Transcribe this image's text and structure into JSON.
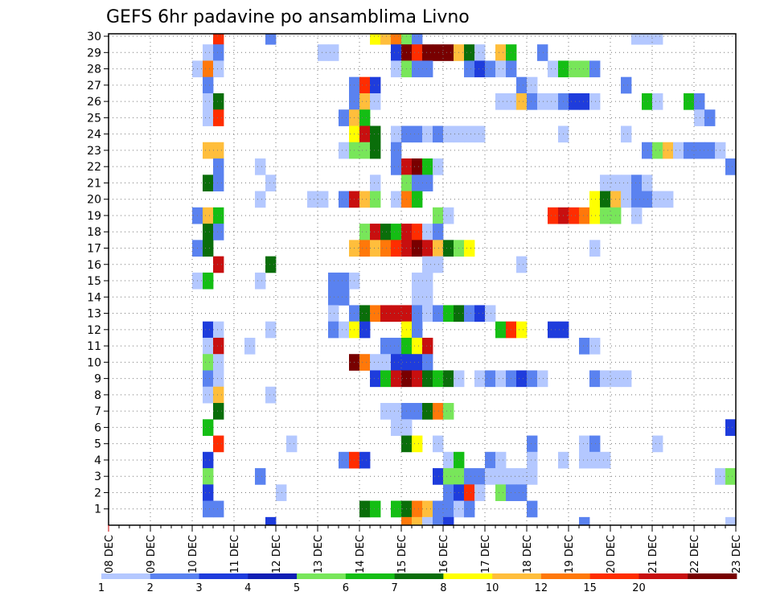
{
  "chart_data": {
    "type": "heatmap",
    "title": "GEFS 6hr padavine po ansamblima Livno",
    "xlabel": "",
    "ylabel": "",
    "x_ticks": [
      "08 DEC",
      "09 DEC",
      "10 DEC",
      "11 DEC",
      "12 DEC",
      "13 DEC",
      "14 DEC",
      "15 DEC",
      "16 DEC",
      "17 DEC",
      "18 DEC",
      "19 DEC",
      "20 DEC",
      "21 DEC",
      "22 DEC",
      "23 DEC"
    ],
    "y_ticks": [
      "1",
      "2",
      "3",
      "4",
      "5",
      "6",
      "7",
      "8",
      "9",
      "10",
      "11",
      "12",
      "13",
      "14",
      "15",
      "16",
      "17",
      "18",
      "19",
      "20",
      "21",
      "22",
      "23",
      "24",
      "25",
      "26",
      "27",
      "28",
      "29",
      "30"
    ],
    "x_range": [
      0,
      60
    ],
    "y_range": [
      0,
      30
    ],
    "grid": true,
    "colorbar": {
      "placement": "bottom",
      "colors": [
        "#b4c8ff",
        "#5a82f0",
        "#1e3cdc",
        "#0f1eb4",
        "#78e65a",
        "#14be14",
        "#0a6e0a",
        "#ffff00",
        "#ffbe3c",
        "#ff780a",
        "#ff2d00",
        "#c80f0f",
        "#780000"
      ],
      "labels": [
        "1",
        "2",
        "3",
        "4",
        "5",
        "6",
        "7",
        "8",
        "10",
        "12",
        "15",
        "20"
      ]
    },
    "cells": [
      [
        10,
        30,
        10
      ],
      [
        15,
        30,
        1
      ],
      [
        25,
        30,
        7
      ],
      [
        26,
        30,
        8
      ],
      [
        27,
        30,
        9
      ],
      [
        28,
        30,
        4
      ],
      [
        29,
        30,
        1
      ],
      [
        50,
        30,
        0
      ],
      [
        51,
        30,
        0
      ],
      [
        52,
        30,
        0
      ],
      [
        9,
        29,
        0
      ],
      [
        10,
        29,
        1
      ],
      [
        20,
        29,
        0
      ],
      [
        21,
        29,
        0
      ],
      [
        27,
        29,
        2
      ],
      [
        28,
        29,
        12
      ],
      [
        29,
        29,
        10
      ],
      [
        30,
        29,
        12
      ],
      [
        31,
        29,
        12
      ],
      [
        32,
        29,
        12
      ],
      [
        33,
        29,
        8
      ],
      [
        34,
        29,
        6
      ],
      [
        35,
        29,
        0
      ],
      [
        37,
        29,
        8
      ],
      [
        38,
        29,
        5
      ],
      [
        41,
        29,
        1
      ],
      [
        8,
        28,
        0
      ],
      [
        9,
        28,
        9
      ],
      [
        10,
        28,
        0
      ],
      [
        27,
        28,
        0
      ],
      [
        28,
        28,
        4
      ],
      [
        29,
        28,
        1
      ],
      [
        30,
        28,
        1
      ],
      [
        34,
        28,
        1
      ],
      [
        35,
        28,
        2
      ],
      [
        36,
        28,
        1
      ],
      [
        37,
        28,
        0
      ],
      [
        38,
        28,
        1
      ],
      [
        42,
        28,
        0
      ],
      [
        43,
        28,
        5
      ],
      [
        44,
        28,
        4
      ],
      [
        45,
        28,
        4
      ],
      [
        46,
        28,
        1
      ],
      [
        9,
        27,
        1
      ],
      [
        23,
        27,
        1
      ],
      [
        24,
        27,
        10
      ],
      [
        25,
        27,
        2
      ],
      [
        39,
        27,
        1
      ],
      [
        40,
        27,
        0
      ],
      [
        49,
        27,
        1
      ],
      [
        9,
        26,
        0
      ],
      [
        10,
        26,
        6
      ],
      [
        23,
        26,
        1
      ],
      [
        24,
        26,
        8
      ],
      [
        25,
        26,
        0
      ],
      [
        37,
        26,
        0
      ],
      [
        38,
        26,
        0
      ],
      [
        39,
        26,
        8
      ],
      [
        40,
        26,
        1
      ],
      [
        41,
        26,
        0
      ],
      [
        42,
        26,
        0
      ],
      [
        43,
        26,
        1
      ],
      [
        44,
        26,
        2
      ],
      [
        45,
        26,
        2
      ],
      [
        46,
        26,
        0
      ],
      [
        51,
        26,
        5
      ],
      [
        52,
        26,
        0
      ],
      [
        55,
        26,
        5
      ],
      [
        56,
        26,
        1
      ],
      [
        9,
        25,
        0
      ],
      [
        10,
        25,
        10
      ],
      [
        22,
        25,
        1
      ],
      [
        23,
        25,
        8
      ],
      [
        24,
        25,
        5
      ],
      [
        56,
        25,
        0
      ],
      [
        57,
        25,
        1
      ],
      [
        23,
        24,
        7
      ],
      [
        24,
        24,
        11
      ],
      [
        25,
        24,
        6
      ],
      [
        27,
        24,
        0
      ],
      [
        28,
        24,
        1
      ],
      [
        29,
        24,
        1
      ],
      [
        30,
        24,
        0
      ],
      [
        31,
        24,
        1
      ],
      [
        32,
        24,
        0
      ],
      [
        33,
        24,
        0
      ],
      [
        34,
        24,
        0
      ],
      [
        35,
        24,
        0
      ],
      [
        43,
        24,
        0
      ],
      [
        49,
        24,
        0
      ],
      [
        9,
        23,
        8
      ],
      [
        10,
        23,
        8
      ],
      [
        22,
        23,
        0
      ],
      [
        23,
        23,
        4
      ],
      [
        24,
        23,
        4
      ],
      [
        25,
        23,
        6
      ],
      [
        27,
        23,
        1
      ],
      [
        51,
        23,
        1
      ],
      [
        52,
        23,
        4
      ],
      [
        53,
        23,
        8
      ],
      [
        54,
        23,
        0
      ],
      [
        55,
        23,
        1
      ],
      [
        56,
        23,
        1
      ],
      [
        57,
        23,
        1
      ],
      [
        58,
        23,
        0
      ],
      [
        10,
        22,
        1
      ],
      [
        14,
        22,
        0
      ],
      [
        27,
        22,
        1
      ],
      [
        28,
        22,
        11
      ],
      [
        29,
        22,
        12
      ],
      [
        30,
        22,
        5
      ],
      [
        31,
        22,
        0
      ],
      [
        59,
        22,
        1
      ],
      [
        9,
        21,
        6
      ],
      [
        10,
        21,
        1
      ],
      [
        15,
        21,
        0
      ],
      [
        25,
        21,
        0
      ],
      [
        28,
        21,
        4
      ],
      [
        29,
        21,
        1
      ],
      [
        30,
        21,
        1
      ],
      [
        47,
        21,
        0
      ],
      [
        48,
        21,
        0
      ],
      [
        49,
        21,
        0
      ],
      [
        50,
        21,
        1
      ],
      [
        51,
        21,
        0
      ],
      [
        14,
        20,
        0
      ],
      [
        19,
        20,
        0
      ],
      [
        20,
        20,
        0
      ],
      [
        22,
        20,
        1
      ],
      [
        23,
        20,
        11
      ],
      [
        24,
        20,
        8
      ],
      [
        25,
        20,
        4
      ],
      [
        27,
        20,
        0
      ],
      [
        28,
        20,
        9
      ],
      [
        29,
        20,
        5
      ],
      [
        46,
        20,
        7
      ],
      [
        47,
        20,
        6
      ],
      [
        48,
        20,
        8
      ],
      [
        49,
        20,
        0
      ],
      [
        50,
        20,
        1
      ],
      [
        51,
        20,
        1
      ],
      [
        52,
        20,
        0
      ],
      [
        53,
        20,
        0
      ],
      [
        8,
        19,
        1
      ],
      [
        9,
        19,
        8
      ],
      [
        10,
        19,
        5
      ],
      [
        31,
        19,
        4
      ],
      [
        32,
        19,
        0
      ],
      [
        42,
        19,
        10
      ],
      [
        43,
        19,
        11
      ],
      [
        44,
        19,
        10
      ],
      [
        45,
        19,
        9
      ],
      [
        46,
        19,
        7
      ],
      [
        47,
        19,
        4
      ],
      [
        48,
        19,
        4
      ],
      [
        50,
        19,
        0
      ],
      [
        9,
        18,
        6
      ],
      [
        10,
        18,
        1
      ],
      [
        24,
        18,
        4
      ],
      [
        25,
        18,
        11
      ],
      [
        26,
        18,
        6
      ],
      [
        27,
        18,
        5
      ],
      [
        28,
        18,
        11
      ],
      [
        29,
        18,
        10
      ],
      [
        30,
        18,
        0
      ],
      [
        31,
        18,
        1
      ],
      [
        8,
        17,
        1
      ],
      [
        9,
        17,
        6
      ],
      [
        23,
        17,
        8
      ],
      [
        24,
        17,
        9
      ],
      [
        25,
        17,
        8
      ],
      [
        26,
        17,
        9
      ],
      [
        27,
        17,
        10
      ],
      [
        28,
        17,
        11
      ],
      [
        29,
        17,
        12
      ],
      [
        30,
        17,
        11
      ],
      [
        31,
        17,
        8
      ],
      [
        32,
        17,
        6
      ],
      [
        33,
        17,
        4
      ],
      [
        34,
        17,
        7
      ],
      [
        46,
        17,
        0
      ],
      [
        10,
        16,
        11
      ],
      [
        15,
        16,
        6
      ],
      [
        30,
        16,
        0
      ],
      [
        31,
        16,
        0
      ],
      [
        39,
        16,
        0
      ],
      [
        8,
        15,
        0
      ],
      [
        9,
        15,
        5
      ],
      [
        14,
        15,
        0
      ],
      [
        21,
        15,
        1
      ],
      [
        22,
        15,
        1
      ],
      [
        23,
        15,
        0
      ],
      [
        29,
        15,
        0
      ],
      [
        30,
        15,
        0
      ],
      [
        21,
        14,
        1
      ],
      [
        22,
        14,
        1
      ],
      [
        29,
        14,
        0
      ],
      [
        30,
        14,
        0
      ],
      [
        21,
        13,
        0
      ],
      [
        23,
        13,
        1
      ],
      [
        24,
        13,
        6
      ],
      [
        25,
        13,
        9
      ],
      [
        26,
        13,
        11
      ],
      [
        27,
        13,
        11
      ],
      [
        28,
        13,
        11
      ],
      [
        29,
        13,
        1
      ],
      [
        30,
        13,
        0
      ],
      [
        31,
        13,
        1
      ],
      [
        32,
        13,
        5
      ],
      [
        33,
        13,
        6
      ],
      [
        34,
        13,
        1
      ],
      [
        35,
        13,
        2
      ],
      [
        36,
        13,
        0
      ],
      [
        9,
        12,
        2
      ],
      [
        10,
        12,
        0
      ],
      [
        15,
        12,
        0
      ],
      [
        21,
        12,
        1
      ],
      [
        22,
        12,
        0
      ],
      [
        23,
        12,
        7
      ],
      [
        24,
        12,
        2
      ],
      [
        28,
        12,
        7
      ],
      [
        29,
        12,
        1
      ],
      [
        37,
        12,
        5
      ],
      [
        38,
        12,
        10
      ],
      [
        39,
        12,
        7
      ],
      [
        42,
        12,
        2
      ],
      [
        43,
        12,
        2
      ],
      [
        9,
        11,
        0
      ],
      [
        10,
        11,
        11
      ],
      [
        13,
        11,
        0
      ],
      [
        26,
        11,
        1
      ],
      [
        27,
        11,
        1
      ],
      [
        28,
        11,
        5
      ],
      [
        29,
        11,
        7
      ],
      [
        30,
        11,
        11
      ],
      [
        45,
        11,
        1
      ],
      [
        46,
        11,
        0
      ],
      [
        9,
        10,
        4
      ],
      [
        10,
        10,
        0
      ],
      [
        23,
        10,
        12
      ],
      [
        24,
        10,
        9
      ],
      [
        25,
        10,
        0
      ],
      [
        26,
        10,
        0
      ],
      [
        27,
        10,
        2
      ],
      [
        28,
        10,
        2
      ],
      [
        29,
        10,
        2
      ],
      [
        30,
        10,
        1
      ],
      [
        9,
        9,
        1
      ],
      [
        10,
        9,
        0
      ],
      [
        25,
        9,
        2
      ],
      [
        26,
        9,
        5
      ],
      [
        27,
        9,
        11
      ],
      [
        28,
        9,
        12
      ],
      [
        29,
        9,
        11
      ],
      [
        30,
        9,
        6
      ],
      [
        31,
        9,
        5
      ],
      [
        32,
        9,
        6
      ],
      [
        33,
        9,
        0
      ],
      [
        35,
        9,
        0
      ],
      [
        36,
        9,
        1
      ],
      [
        37,
        9,
        0
      ],
      [
        38,
        9,
        1
      ],
      [
        39,
        9,
        2
      ],
      [
        40,
        9,
        1
      ],
      [
        41,
        9,
        0
      ],
      [
        46,
        9,
        1
      ],
      [
        47,
        9,
        0
      ],
      [
        48,
        9,
        0
      ],
      [
        49,
        9,
        0
      ],
      [
        9,
        8,
        0
      ],
      [
        10,
        8,
        8
      ],
      [
        15,
        8,
        0
      ],
      [
        10,
        7,
        6
      ],
      [
        26,
        7,
        0
      ],
      [
        27,
        7,
        0
      ],
      [
        28,
        7,
        1
      ],
      [
        29,
        7,
        1
      ],
      [
        30,
        7,
        6
      ],
      [
        31,
        7,
        9
      ],
      [
        32,
        7,
        4
      ],
      [
        9,
        6,
        5
      ],
      [
        27,
        6,
        0
      ],
      [
        28,
        6,
        0
      ],
      [
        59,
        6,
        2
      ],
      [
        60,
        6,
        5
      ],
      [
        10,
        5,
        10
      ],
      [
        17,
        5,
        0
      ],
      [
        28,
        5,
        6
      ],
      [
        29,
        5,
        7
      ],
      [
        31,
        5,
        0
      ],
      [
        40,
        5,
        1
      ],
      [
        45,
        5,
        0
      ],
      [
        46,
        5,
        1
      ],
      [
        52,
        5,
        0
      ],
      [
        9,
        4,
        2
      ],
      [
        22,
        4,
        1
      ],
      [
        23,
        4,
        10
      ],
      [
        24,
        4,
        2
      ],
      [
        32,
        4,
        0
      ],
      [
        33,
        4,
        5
      ],
      [
        36,
        4,
        1
      ],
      [
        37,
        4,
        0
      ],
      [
        40,
        4,
        0
      ],
      [
        43,
        4,
        0
      ],
      [
        45,
        4,
        0
      ],
      [
        46,
        4,
        0
      ],
      [
        47,
        4,
        0
      ],
      [
        9,
        3,
        4
      ],
      [
        14,
        3,
        1
      ],
      [
        31,
        3,
        2
      ],
      [
        32,
        3,
        4
      ],
      [
        33,
        3,
        4
      ],
      [
        34,
        3,
        1
      ],
      [
        35,
        3,
        1
      ],
      [
        36,
        3,
        0
      ],
      [
        37,
        3,
        0
      ],
      [
        38,
        3,
        0
      ],
      [
        39,
        3,
        0
      ],
      [
        40,
        3,
        0
      ],
      [
        58,
        3,
        0
      ],
      [
        59,
        3,
        4
      ],
      [
        9,
        2,
        2
      ],
      [
        16,
        2,
        0
      ],
      [
        32,
        2,
        1
      ],
      [
        33,
        2,
        2
      ],
      [
        34,
        2,
        10
      ],
      [
        35,
        2,
        0
      ],
      [
        37,
        2,
        4
      ],
      [
        38,
        2,
        1
      ],
      [
        39,
        2,
        1
      ],
      [
        9,
        1,
        1
      ],
      [
        10,
        1,
        1
      ],
      [
        24,
        1,
        6
      ],
      [
        25,
        1,
        5
      ],
      [
        27,
        1,
        5
      ],
      [
        28,
        1,
        6
      ],
      [
        29,
        1,
        9
      ],
      [
        30,
        1,
        8
      ],
      [
        31,
        1,
        1
      ],
      [
        32,
        1,
        1
      ],
      [
        33,
        1,
        0
      ],
      [
        34,
        1,
        1
      ],
      [
        40,
        1,
        1
      ],
      [
        15,
        0,
        2
      ],
      [
        28,
        0,
        9
      ],
      [
        29,
        0,
        8
      ],
      [
        30,
        0,
        0
      ],
      [
        31,
        0,
        1
      ],
      [
        32,
        0,
        2
      ],
      [
        45,
        0,
        1
      ],
      [
        59,
        0,
        0
      ]
    ]
  }
}
